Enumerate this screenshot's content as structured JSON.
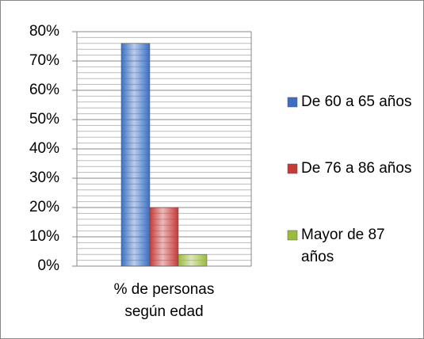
{
  "chart_data": {
    "type": "bar",
    "categories": [
      "% de personas según edad"
    ],
    "series": [
      {
        "name": "De 60 a 65 años",
        "color": "#3a6fc4",
        "values": [
          76
        ]
      },
      {
        "name": "De 76 a 86 años",
        "color": "#c63a37",
        "values": [
          20
        ]
      },
      {
        "name": "Mayor de 87 años",
        "color": "#9bbb3c",
        "values": [
          4
        ]
      }
    ],
    "ylim": [
      0,
      80
    ],
    "yticks": [
      {
        "value": 0,
        "label": "0%"
      },
      {
        "value": 10,
        "label": "10%"
      },
      {
        "value": 20,
        "label": "20%"
      },
      {
        "value": 30,
        "label": "30%"
      },
      {
        "value": 40,
        "label": "40%"
      },
      {
        "value": 50,
        "label": "50%"
      },
      {
        "value": 60,
        "label": "60%"
      },
      {
        "value": 70,
        "label": "70%"
      },
      {
        "value": 80,
        "label": "80%"
      }
    ],
    "yminor": [
      2,
      4,
      6,
      8,
      12,
      14,
      16,
      18,
      22,
      24,
      26,
      28,
      32,
      34,
      36,
      38,
      42,
      44,
      46,
      48,
      52,
      54,
      56,
      58,
      62,
      64,
      66,
      68,
      72,
      74,
      76,
      78
    ],
    "grid": true,
    "legend": "right"
  }
}
